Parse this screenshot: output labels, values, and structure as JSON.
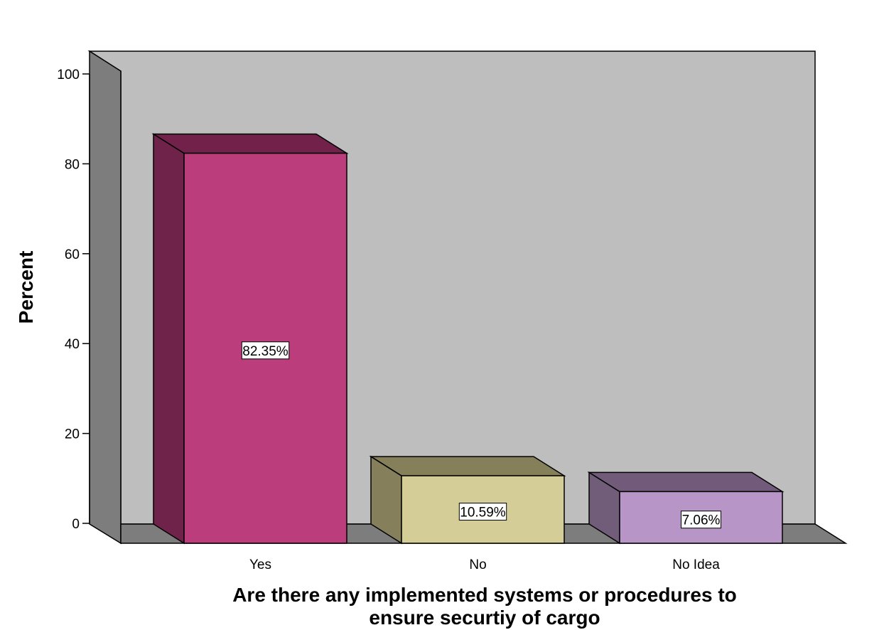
{
  "chart_data": {
    "type": "bar",
    "style": "3d",
    "categories": [
      "Yes",
      "No",
      "No Idea"
    ],
    "values": [
      82.35,
      10.59,
      7.06
    ],
    "data_labels": [
      "82.35%",
      "10.59%",
      "7.06%"
    ],
    "ylabel": "Percent",
    "xlabel_lines": [
      "Are there any implemented systems or procedures to",
      "ensure securtiy of cargo"
    ],
    "ylim": [
      0,
      100
    ],
    "yticks": [
      0,
      20,
      40,
      60,
      80,
      100
    ],
    "grid": false,
    "legend": "none",
    "colors": {
      "bars_front": [
        "#bc3d7b",
        "#d5cd98",
        "#b796c7"
      ],
      "bars_side": [
        "#70234a",
        "#85805b",
        "#715d79"
      ],
      "bars_top": [
        "#71214a",
        "#85805a",
        "#725a7a"
      ],
      "back_wall": "#bebebe",
      "side_wall": "#7d7d7d",
      "floor": "#7d7d7d"
    }
  }
}
